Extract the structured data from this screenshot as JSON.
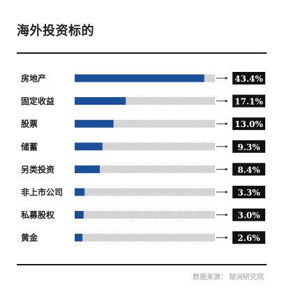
{
  "title": "海外投资标的",
  "footer": {
    "prefix": "数据来源：",
    "source": "胡润研究院"
  },
  "colors": {
    "bar": "#1a4f9c",
    "track": "#d4d4d4",
    "label_bg": "#111111",
    "label_text": "#ffffff"
  },
  "chart_data": {
    "type": "bar",
    "orientation": "horizontal",
    "categories": [
      "房地产",
      "固定收益",
      "股票",
      "储蓄",
      "另类投资",
      "非上市公司",
      "私募股权",
      "黄金"
    ],
    "values": [
      43.4,
      17.1,
      13.0,
      9.3,
      8.4,
      3.3,
      3.0,
      2.6
    ],
    "value_labels": [
      "43.4%",
      "17.1%",
      "13.0%",
      "9.3%",
      "8.4%",
      "3.3%",
      "3.0%",
      "2.6%"
    ],
    "xlim": [
      0,
      47
    ],
    "title": "海外投资标的",
    "xlabel": "",
    "ylabel": ""
  }
}
